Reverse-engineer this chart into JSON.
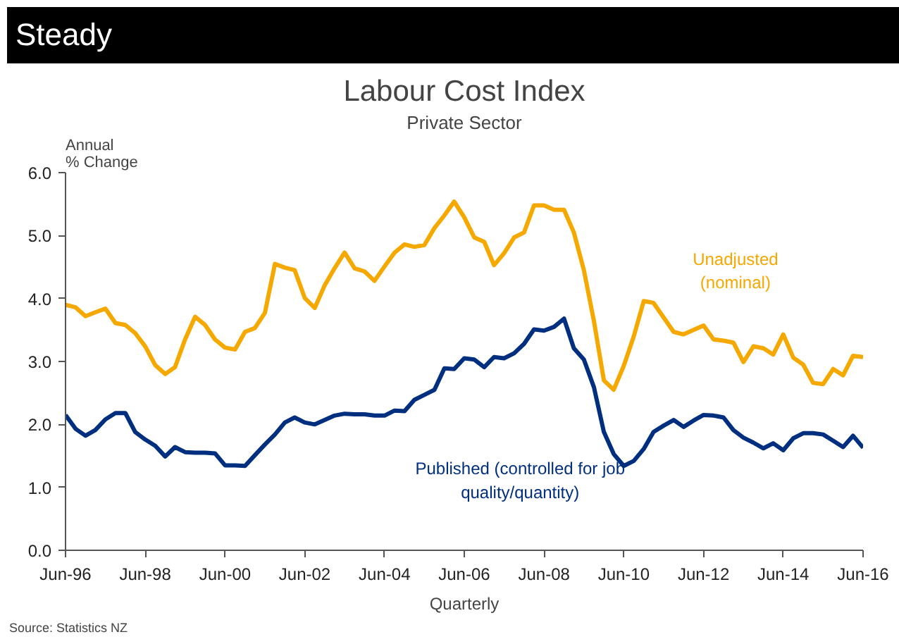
{
  "chart_data": {
    "type": "line",
    "title": "Labour Cost Index",
    "subtitle": "Private Sector",
    "xlabel": "Quarterly",
    "ylabel": "Annual\n% Change",
    "annotations": [
      "Steady",
      "Source: Statistics NZ"
    ],
    "x": [
      "1996-06",
      "1996-09",
      "1996-12",
      "1997-03",
      "1997-06",
      "1997-09",
      "1997-12",
      "1998-03",
      "1998-06",
      "1998-09",
      "1998-12",
      "1999-03",
      "1999-06",
      "1999-09",
      "1999-12",
      "2000-03",
      "2000-06",
      "2000-09",
      "2000-12",
      "2001-03",
      "2001-06",
      "2001-09",
      "2001-12",
      "2002-03",
      "2002-06",
      "2002-09",
      "2002-12",
      "2003-03",
      "2003-06",
      "2003-09",
      "2003-12",
      "2004-03",
      "2004-06",
      "2004-09",
      "2004-12",
      "2005-03",
      "2005-06",
      "2005-09",
      "2005-12",
      "2006-03",
      "2006-06",
      "2006-09",
      "2006-12",
      "2007-03",
      "2007-06",
      "2007-09",
      "2007-12",
      "2008-03",
      "2008-06",
      "2008-09",
      "2008-12",
      "2009-03",
      "2009-06",
      "2009-09",
      "2009-12",
      "2010-03",
      "2010-06",
      "2010-09",
      "2010-12",
      "2011-03",
      "2011-06",
      "2011-09",
      "2011-12",
      "2012-03",
      "2012-06",
      "2012-09",
      "2012-12",
      "2013-03",
      "2013-06",
      "2013-09",
      "2013-12",
      "2014-03",
      "2014-06",
      "2014-09",
      "2014-12",
      "2015-03",
      "2015-06",
      "2015-09",
      "2015-12",
      "2016-03",
      "2016-06"
    ],
    "series": [
      {
        "name": "Unadjusted\n(nominal)",
        "color": "#f5a800",
        "values": [
          3.9,
          3.86,
          3.72,
          3.78,
          3.84,
          3.61,
          3.58,
          3.45,
          3.24,
          2.94,
          2.8,
          2.91,
          3.35,
          3.71,
          3.58,
          3.35,
          3.22,
          3.19,
          3.47,
          3.53,
          3.77,
          4.55,
          4.49,
          4.45,
          4.01,
          3.85,
          4.21,
          4.48,
          4.73,
          4.48,
          4.43,
          4.28,
          4.51,
          4.73,
          4.86,
          4.82,
          4.85,
          5.12,
          5.32,
          5.54,
          5.29,
          4.97,
          4.9,
          4.53,
          4.72,
          4.97,
          5.05,
          5.48,
          5.48,
          5.41,
          5.41,
          5.05,
          4.45,
          3.64,
          2.7,
          2.55,
          2.93,
          3.4,
          3.96,
          3.93,
          3.7,
          3.47,
          3.43,
          3.5,
          3.57,
          3.35,
          3.33,
          3.3,
          2.99,
          3.24,
          3.21,
          3.11,
          3.43,
          3.06,
          2.95,
          2.66,
          2.64,
          2.88,
          2.78,
          3.09,
          3.07
        ]
      },
      {
        "name": "Published (controlled for job\nquality/quantity)",
        "color": "#002f7f",
        "values": [
          2.15,
          1.93,
          1.82,
          1.91,
          2.08,
          2.18,
          2.18,
          1.88,
          1.76,
          1.66,
          1.49,
          1.64,
          1.56,
          1.55,
          1.55,
          1.54,
          1.35,
          1.35,
          1.34,
          1.51,
          1.68,
          1.84,
          2.03,
          2.11,
          2.03,
          2.0,
          2.07,
          2.14,
          2.17,
          2.16,
          2.16,
          2.14,
          2.14,
          2.22,
          2.21,
          2.39,
          2.47,
          2.55,
          2.89,
          2.88,
          3.05,
          3.03,
          2.91,
          3.07,
          3.05,
          3.13,
          3.28,
          3.51,
          3.49,
          3.55,
          3.68,
          3.21,
          3.03,
          2.59,
          1.88,
          1.53,
          1.34,
          1.42,
          1.61,
          1.88,
          1.98,
          2.07,
          1.96,
          2.06,
          2.15,
          2.14,
          2.11,
          1.91,
          1.79,
          1.71,
          1.62,
          1.7,
          1.59,
          1.78,
          1.86,
          1.86,
          1.84,
          1.74,
          1.64,
          1.82,
          1.63
        ]
      }
    ],
    "xlim": [
      "1996-06",
      "2016-06"
    ],
    "xticks": [
      {
        "value": "1996-06",
        "label": "Jun-96"
      },
      {
        "value": "1998-06",
        "label": "Jun-98"
      },
      {
        "value": "2000-06",
        "label": "Jun-00"
      },
      {
        "value": "2002-06",
        "label": "Jun-02"
      },
      {
        "value": "2004-06",
        "label": "Jun-04"
      },
      {
        "value": "2006-06",
        "label": "Jun-06"
      },
      {
        "value": "2008-06",
        "label": "Jun-08"
      },
      {
        "value": "2010-06",
        "label": "Jun-10"
      },
      {
        "value": "2012-06",
        "label": "Jun-12"
      },
      {
        "value": "2014-06",
        "label": "Jun-14"
      },
      {
        "value": "2016-06",
        "label": "Jun-16"
      }
    ],
    "ylim": [
      0,
      6
    ],
    "yticks": [
      {
        "value": 0,
        "label": "0.0"
      },
      {
        "value": 1,
        "label": "1.0"
      },
      {
        "value": 2,
        "label": "2.0"
      },
      {
        "value": 3,
        "label": "3.0"
      },
      {
        "value": 4,
        "label": "4.0"
      },
      {
        "value": 5,
        "label": "5.0"
      },
      {
        "value": 6,
        "label": "6.0"
      }
    ],
    "grid": false,
    "marker": "none",
    "line_style": "solid"
  }
}
